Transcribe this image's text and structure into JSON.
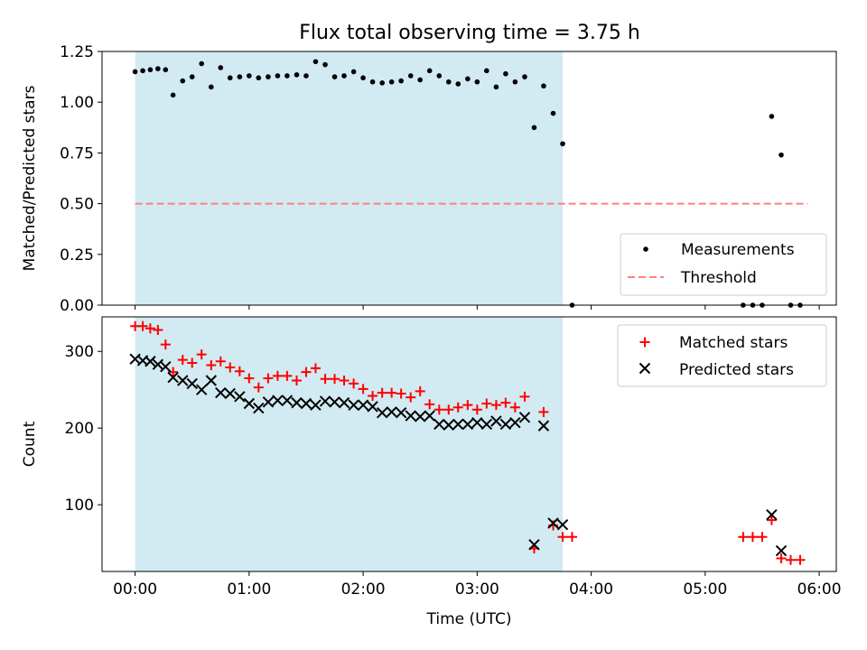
{
  "figure": {
    "title": "Flux total observing time = 3.75 h"
  },
  "colors": {
    "observing_span": "#add8e6",
    "measurements": "#000000",
    "threshold": "#ff7f7f",
    "matched": "#ff0000",
    "predicted": "#000000"
  },
  "chart_data": [
    {
      "type": "scatter",
      "title": "Flux total observing time = 3.75 h",
      "xlabel": "",
      "ylabel": "Matched/Predicted stars",
      "xlim": [
        -0.29,
        6.15
      ],
      "ylim": [
        0,
        1.25
      ],
      "x_ticks": [
        0,
        1,
        2,
        3,
        4,
        5,
        6
      ],
      "y_ticks": [
        0,
        0.25,
        0.5,
        0.75,
        1.0,
        1.25
      ],
      "y_tick_labels": [
        "0.00",
        "0.25",
        "0.50",
        "0.75",
        "1.00",
        "1.25"
      ],
      "observing_span": [
        0,
        3.75
      ],
      "legend_position": "lower-right",
      "series": [
        {
          "name": "Measurements",
          "kind": "points",
          "x": [
            0.0,
            0.067,
            0.133,
            0.2,
            0.267,
            0.333,
            0.417,
            0.5,
            0.583,
            0.667,
            0.75,
            0.833,
            0.917,
            1.0,
            1.083,
            1.167,
            1.25,
            1.333,
            1.417,
            1.5,
            1.583,
            1.667,
            1.75,
            1.833,
            1.917,
            2.0,
            2.083,
            2.167,
            2.25,
            2.333,
            2.417,
            2.5,
            2.583,
            2.667,
            2.75,
            2.833,
            2.917,
            3.0,
            3.083,
            3.167,
            3.25,
            3.333,
            3.417,
            3.5,
            3.583,
            3.667,
            3.75,
            3.833,
            5.333,
            5.417,
            5.5,
            5.583,
            5.667,
            5.75,
            5.833
          ],
          "y": [
            1.15,
            1.155,
            1.16,
            1.165,
            1.16,
            1.035,
            1.105,
            1.125,
            1.19,
            1.075,
            1.17,
            1.12,
            1.125,
            1.13,
            1.12,
            1.125,
            1.13,
            1.13,
            1.135,
            1.13,
            1.2,
            1.185,
            1.125,
            1.13,
            1.15,
            1.12,
            1.1,
            1.095,
            1.1,
            1.105,
            1.13,
            1.11,
            1.155,
            1.13,
            1.1,
            1.09,
            1.115,
            1.1,
            1.155,
            1.075,
            1.14,
            1.1,
            1.125,
            0.875,
            1.08,
            0.945,
            0.795,
            0,
            0,
            0,
            0,
            0.93,
            0.74,
            0,
            0
          ]
        },
        {
          "name": "Threshold",
          "kind": "dashed-line",
          "x": [
            0,
            5.9
          ],
          "y": [
            0.5,
            0.5
          ]
        }
      ]
    },
    {
      "type": "scatter",
      "title": "",
      "xlabel": "Time (UTC)",
      "ylabel": "Count",
      "xlim": [
        -0.29,
        6.15
      ],
      "ylim": [
        13,
        345
      ],
      "x_ticks": [
        0,
        1,
        2,
        3,
        4,
        5,
        6
      ],
      "x_tick_labels": [
        "00:00",
        "01:00",
        "02:00",
        "03:00",
        "04:00",
        "05:00",
        "06:00"
      ],
      "y_ticks": [
        100,
        200,
        300
      ],
      "y_tick_labels": [
        "100",
        "200",
        "300"
      ],
      "observing_span": [
        0,
        3.75
      ],
      "legend_position": "upper-right",
      "series": [
        {
          "name": "Matched stars",
          "marker": "plus",
          "x": [
            0.0,
            0.067,
            0.133,
            0.2,
            0.267,
            0.333,
            0.417,
            0.5,
            0.583,
            0.667,
            0.75,
            0.833,
            0.917,
            1.0,
            1.083,
            1.167,
            1.25,
            1.333,
            1.417,
            1.5,
            1.583,
            1.667,
            1.75,
            1.833,
            1.917,
            2.0,
            2.083,
            2.167,
            2.25,
            2.333,
            2.417,
            2.5,
            2.583,
            2.667,
            2.75,
            2.833,
            2.917,
            3.0,
            3.083,
            3.167,
            3.25,
            3.333,
            3.417,
            3.5,
            3.583,
            3.667,
            3.75,
            3.833,
            5.333,
            5.417,
            5.5,
            5.583,
            5.667,
            5.75,
            5.833
          ],
          "y": [
            333,
            333,
            330,
            328,
            309,
            273,
            289,
            285,
            296,
            282,
            287,
            279,
            274,
            265,
            253,
            265,
            268,
            268,
            262,
            273,
            278,
            264,
            264,
            262,
            258,
            251,
            242,
            246,
            246,
            245,
            240,
            248,
            231,
            224,
            224,
            227,
            230,
            224,
            232,
            230,
            233,
            227,
            241,
            43,
            221,
            73,
            58,
            58,
            58,
            58,
            58,
            80,
            30,
            28,
            28
          ]
        },
        {
          "name": "Predicted stars",
          "marker": "x",
          "x": [
            0.0,
            0.067,
            0.133,
            0.2,
            0.267,
            0.333,
            0.417,
            0.5,
            0.583,
            0.667,
            0.75,
            0.833,
            0.917,
            1.0,
            1.083,
            1.167,
            1.25,
            1.333,
            1.417,
            1.5,
            1.583,
            1.667,
            1.75,
            1.833,
            1.917,
            2.0,
            2.083,
            2.167,
            2.25,
            2.333,
            2.417,
            2.5,
            2.583,
            2.667,
            2.75,
            2.833,
            2.917,
            3.0,
            3.083,
            3.167,
            3.25,
            3.333,
            3.417,
            3.5,
            3.583,
            3.667,
            3.75,
            5.583,
            5.667
          ],
          "y": [
            290,
            288,
            287,
            283,
            280,
            266,
            262,
            258,
            250,
            262,
            246,
            245,
            241,
            232,
            226,
            234,
            236,
            236,
            233,
            232,
            230,
            235,
            234,
            233,
            230,
            230,
            228,
            220,
            221,
            220,
            216,
            215,
            216,
            205,
            204,
            205,
            205,
            207,
            205,
            209,
            205,
            207,
            214,
            48,
            203,
            76,
            74,
            87,
            40
          ]
        }
      ]
    }
  ]
}
